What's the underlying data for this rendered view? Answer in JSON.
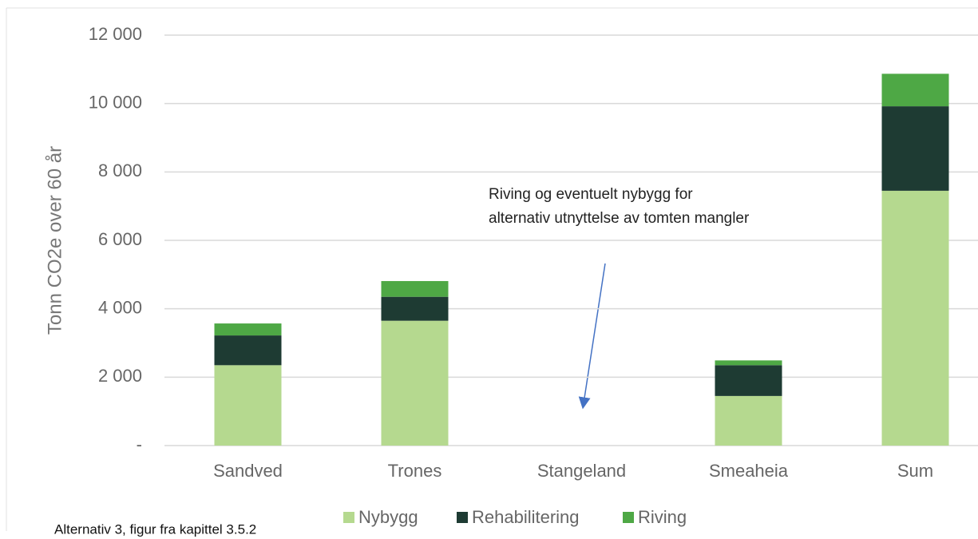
{
  "chart_data": {
    "type": "stacked_bar",
    "y_label": "Tonn CO2e over 60 år",
    "categories": [
      "Sandved",
      "Trones",
      "Stangeland",
      "Smeaheia",
      "Sum"
    ],
    "series": [
      {
        "name": "Nybygg",
        "color": "#b5d98f",
        "values": [
          2350,
          3650,
          0,
          1450,
          7450
        ]
      },
      {
        "name": "Rehabilitering",
        "color": "#1e3b33",
        "values": [
          870,
          700,
          0,
          900,
          2470
        ]
      },
      {
        "name": "Riving",
        "color": "#4ea845",
        "values": [
          350,
          460,
          0,
          140,
          950
        ]
      }
    ],
    "ylim": [
      0,
      12000
    ],
    "yticks": [
      {
        "value": 0,
        "label": "-"
      },
      {
        "value": 2000,
        "label": "2 000"
      },
      {
        "value": 4000,
        "label": "4 000"
      },
      {
        "value": 6000,
        "label": "6 000"
      },
      {
        "value": 8000,
        "label": "8 000"
      },
      {
        "value": 10000,
        "label": "10 000"
      },
      {
        "value": 12000,
        "label": "12 000"
      }
    ],
    "grid": true,
    "annotation": [
      "Riving og eventuelt nybygg for",
      "alternativ utnyttelse av tomten mangler"
    ],
    "caption": "Alternativ 3, figur fra kapittel 3.5.2"
  }
}
